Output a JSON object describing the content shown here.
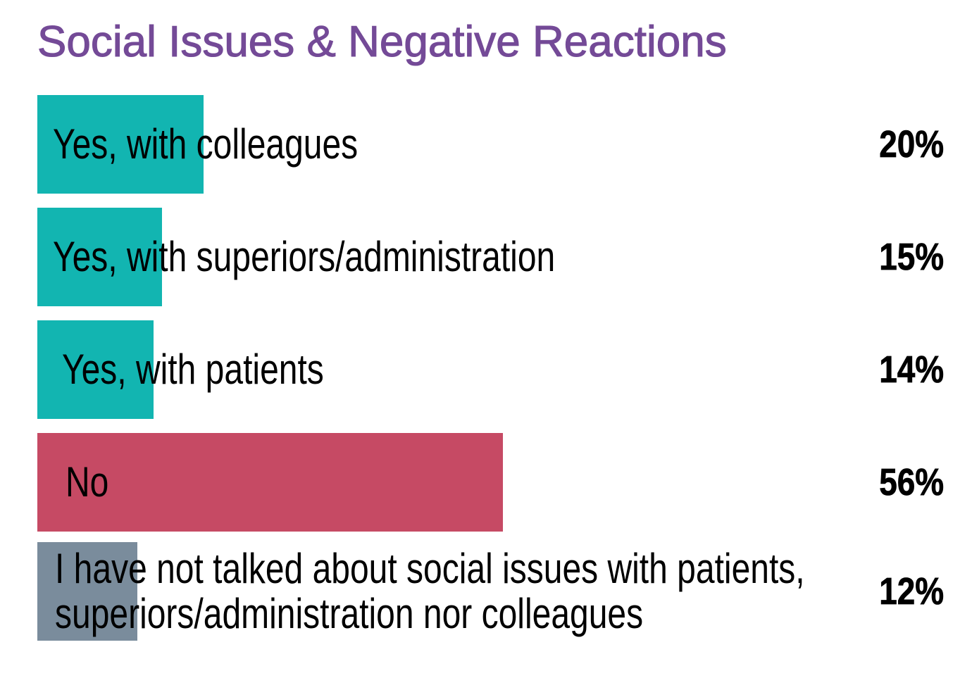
{
  "title": {
    "text": "Social Issues & Negative Reactions",
    "color": "#744A97"
  },
  "chart_data": {
    "type": "bar",
    "orientation": "horizontal",
    "title": "Social Issues & Negative Reactions",
    "categories": [
      "Yes, with colleagues",
      "Yes, with superiors/administration",
      "Yes, with patients",
      "No",
      "I have not talked about social issues with patients, superiors/administration nor colleagues"
    ],
    "values": [
      20,
      15,
      14,
      56,
      12
    ],
    "value_labels": [
      "20%",
      "15%",
      "14%",
      "56%",
      "12%"
    ],
    "unit": "%",
    "xlim": [
      0,
      100
    ],
    "grid": false,
    "legend": false,
    "axes_visible": false,
    "bar_colors": [
      "#12B5B1",
      "#12B5B1",
      "#12B5B1",
      "#C64A64",
      "#7A8C9C"
    ],
    "value_label_position": "right-aligned-outside",
    "category_label_position": "overlapping-bar-left"
  },
  "rows": [
    {
      "label_lines": [
        "Yes, with colleagues"
      ],
      "value": 20,
      "pct": "20%",
      "color": "#12B5B1"
    },
    {
      "label_lines": [
        "Yes, with superiors/administration"
      ],
      "value": 15,
      "pct": "15%",
      "color": "#12B5B1"
    },
    {
      "label_lines": [
        "Yes, with patients"
      ],
      "value": 14,
      "pct": "14%",
      "color": "#12B5B1"
    },
    {
      "label_lines": [
        "No"
      ],
      "value": 56,
      "pct": "56%",
      "color": "#C64A64"
    },
    {
      "label_lines": [
        "I have not talked about social issues with patients,",
        "superiors/administration nor colleagues"
      ],
      "value": 12,
      "pct": "12%",
      "color": "#7A8C9C"
    }
  ]
}
